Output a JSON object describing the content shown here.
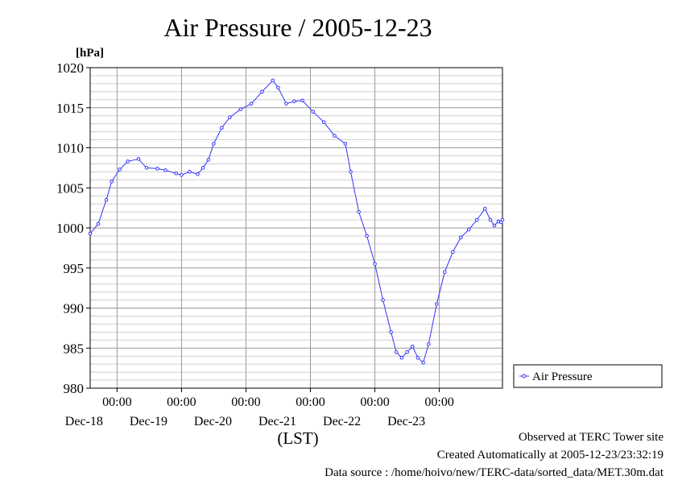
{
  "chart_data": {
    "type": "line",
    "title": "Air Pressure / 2005-12-23",
    "ylabel": "[hPa]",
    "xlabel": "(LST)",
    "ylim": [
      980,
      1020
    ],
    "y_ticks": [
      980,
      985,
      990,
      995,
      1000,
      1005,
      1010,
      1015,
      1020
    ],
    "xlim": [
      "2005-12-17 14:00",
      "2005-12-23 23:30"
    ],
    "x_ticks": [
      {
        "time": "00:00",
        "date": "Dec-18"
      },
      {
        "time": "00:00",
        "date": "Dec-19"
      },
      {
        "time": "00:00",
        "date": "Dec-20"
      },
      {
        "time": "00:00",
        "date": "Dec-21"
      },
      {
        "time": "00:00",
        "date": "Dec-22"
      },
      {
        "time": "00:00",
        "date": "Dec-23"
      }
    ],
    "grid": true,
    "legend": "right",
    "series": [
      {
        "name": "Air Pressure",
        "color": "#3333ff",
        "marker": "open-circle",
        "points": [
          [
            "2005-12-17 14:00",
            999.3
          ],
          [
            "2005-12-17 17:00",
            1000.5
          ],
          [
            "2005-12-17 20:00",
            1003.5
          ],
          [
            "2005-12-17 22:00",
            1005.8
          ],
          [
            "2005-12-18 01:00",
            1007.3
          ],
          [
            "2005-12-18 04:00",
            1008.3
          ],
          [
            "2005-12-18 08:00",
            1008.6
          ],
          [
            "2005-12-18 11:00",
            1007.5
          ],
          [
            "2005-12-18 15:00",
            1007.4
          ],
          [
            "2005-12-18 18:00",
            1007.2
          ],
          [
            "2005-12-18 22:00",
            1006.8
          ],
          [
            "2005-12-19 00:00",
            1006.6
          ],
          [
            "2005-12-19 03:00",
            1007.0
          ],
          [
            "2005-12-19 06:00",
            1006.7
          ],
          [
            "2005-12-19 08:00",
            1007.5
          ],
          [
            "2005-12-19 10:00",
            1008.5
          ],
          [
            "2005-12-19 12:00",
            1010.5
          ],
          [
            "2005-12-19 15:00",
            1012.5
          ],
          [
            "2005-12-19 18:00",
            1013.8
          ],
          [
            "2005-12-19 22:00",
            1014.8
          ],
          [
            "2005-12-20 02:00",
            1015.5
          ],
          [
            "2005-12-20 06:00",
            1017.0
          ],
          [
            "2005-12-20 10:00",
            1018.4
          ],
          [
            "2005-12-20 12:00",
            1017.5
          ],
          [
            "2005-12-20 15:00",
            1015.5
          ],
          [
            "2005-12-20 18:00",
            1015.8
          ],
          [
            "2005-12-20 21:00",
            1015.9
          ],
          [
            "2005-12-21 01:00",
            1014.5
          ],
          [
            "2005-12-21 05:00",
            1013.2
          ],
          [
            "2005-12-21 09:00",
            1011.5
          ],
          [
            "2005-12-21 13:00",
            1010.5
          ],
          [
            "2005-12-21 15:00",
            1007.0
          ],
          [
            "2005-12-21 18:00",
            1002.0
          ],
          [
            "2005-12-21 21:00",
            999.0
          ],
          [
            "2005-12-22 00:00",
            995.5
          ],
          [
            "2005-12-22 03:00",
            991.0
          ],
          [
            "2005-12-22 06:00",
            987.0
          ],
          [
            "2005-12-22 08:00",
            984.5
          ],
          [
            "2005-12-22 10:00",
            983.8
          ],
          [
            "2005-12-22 12:00",
            984.5
          ],
          [
            "2005-12-22 14:00",
            985.2
          ],
          [
            "2005-12-22 16:00",
            983.8
          ],
          [
            "2005-12-22 18:00",
            983.2
          ],
          [
            "2005-12-22 20:00",
            985.5
          ],
          [
            "2005-12-22 23:00",
            990.5
          ],
          [
            "2005-12-23 02:00",
            994.5
          ],
          [
            "2005-12-23 05:00",
            997.0
          ],
          [
            "2005-12-23 08:00",
            998.8
          ],
          [
            "2005-12-23 11:00",
            999.8
          ],
          [
            "2005-12-23 14:00",
            1001.0
          ],
          [
            "2005-12-23 17:00",
            1002.4
          ],
          [
            "2005-12-23 19:00",
            1001.0
          ],
          [
            "2005-12-23 20:30",
            1000.3
          ],
          [
            "2005-12-23 22:00",
            1000.8
          ],
          [
            "2005-12-23 23:00",
            1000.7
          ],
          [
            "2005-12-23 23:30",
            1001.0
          ]
        ]
      }
    ]
  },
  "footer": {
    "line1": "Observed at TERC Tower site",
    "line2": "Created Automatically at 2005-12-23/23:32:19",
    "line3": "Data source : /home/hoivo/new/TERC-data/sorted_data/MET.30m.dat"
  }
}
